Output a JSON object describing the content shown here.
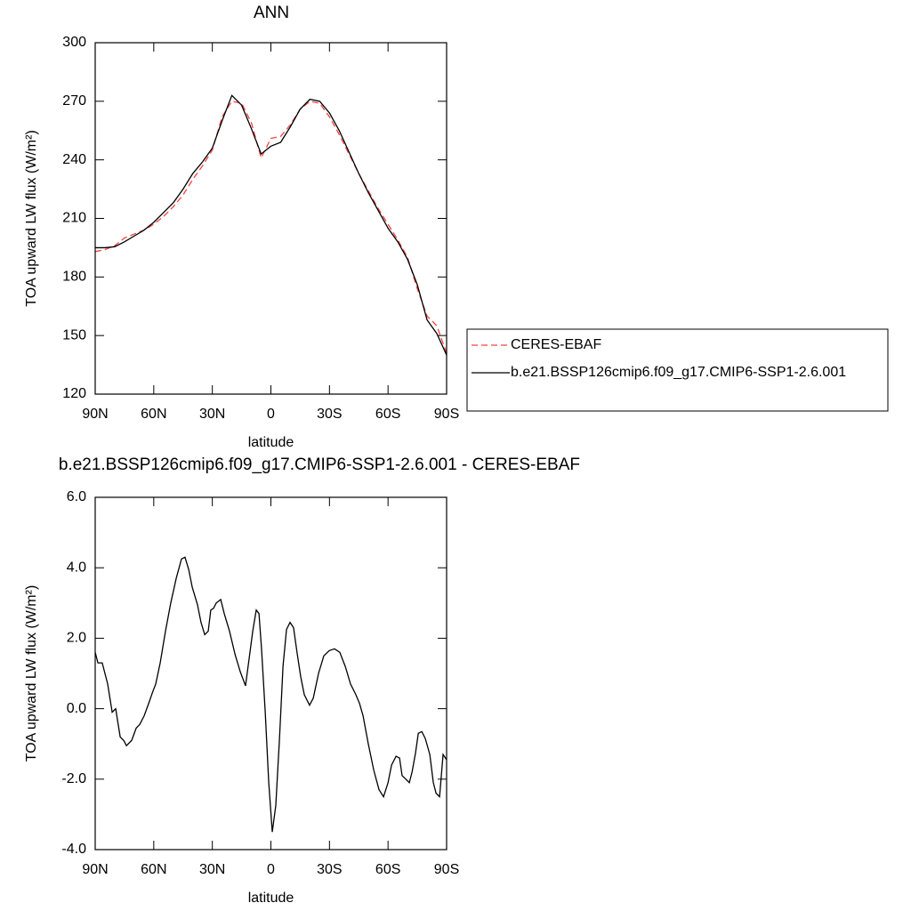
{
  "chart_data": [
    {
      "type": "line",
      "title": "ANN",
      "xlabel": "latitude",
      "ylabel": "TOA upward LW flux (W/m²)",
      "x": [
        90,
        85,
        80,
        75,
        70,
        65,
        60,
        55,
        50,
        45,
        40,
        35,
        30,
        25,
        20,
        15,
        10,
        5,
        0,
        -5,
        -10,
        -15,
        -20,
        -25,
        -30,
        -35,
        -40,
        -45,
        -50,
        -55,
        -60,
        -65,
        -70,
        -75,
        -80,
        -85,
        -90
      ],
      "series": [
        {
          "name": "CERES-EBAF",
          "color": "#ff4040",
          "style": "dashed",
          "values": [
            193,
            194,
            196,
            200,
            202,
            204,
            207,
            211,
            216,
            222,
            230,
            237,
            245,
            262,
            270,
            269,
            259,
            241,
            251,
            252,
            258,
            266,
            270,
            269,
            262,
            253,
            243,
            233,
            224,
            215,
            207,
            199,
            190,
            174,
            160,
            155,
            141
          ]
        },
        {
          "name": "b.e21.BSSP126cmip6.f09_g17.CMIP6-SSP1-2.6.001",
          "color": "#000000",
          "style": "solid",
          "values": [
            195,
            195,
            195.5,
            198,
            201,
            204,
            208,
            213,
            218,
            225,
            233,
            239,
            246,
            260,
            273,
            268,
            256,
            243,
            247,
            249,
            257,
            266,
            271,
            270,
            264,
            255,
            244,
            233,
            223,
            214,
            205,
            198,
            189,
            176,
            158,
            151,
            140
          ]
        }
      ],
      "xlim": [
        90,
        -90
      ],
      "xticks": [
        {
          "value": 90,
          "label": "90N"
        },
        {
          "value": 60,
          "label": "60N"
        },
        {
          "value": 30,
          "label": "30N"
        },
        0,
        {
          "value": -30,
          "label": "30S"
        },
        {
          "value": -60,
          "label": "60S"
        },
        {
          "value": -90,
          "label": "90S"
        }
      ],
      "ylim": [
        120,
        300
      ],
      "yticks": [
        120,
        150,
        180,
        210,
        240,
        270,
        300
      ],
      "legend": "right"
    },
    {
      "type": "line",
      "title": "b.e21.BSSP126cmip6.f09_g17.CMIP6-SSP1-2.6.001 - CERES-EBAF",
      "xlabel": "latitude",
      "ylabel": "TOA upward LW flux (W/m²)",
      "x": [
        90,
        88.6,
        86.4,
        83.6,
        81.3,
        79.5,
        77.2,
        75.4,
        74.0,
        71.3,
        69.0,
        67.2,
        64.9,
        62.6,
        60.4,
        59.0,
        56.7,
        54.0,
        51.3,
        48.5,
        45.8,
        44.0,
        42.1,
        40.3,
        37.6,
        35.8,
        33.9,
        32.1,
        30.8,
        29.4,
        28.0,
        25.7,
        23.9,
        21.2,
        18.4,
        15.7,
        13.0,
        11.2,
        9.3,
        7.5,
        6.1,
        4.8,
        2.9,
        1.1,
        -0.7,
        -2.5,
        -4.4,
        -6.2,
        -8.0,
        -9.8,
        -11.6,
        -13.5,
        -15.3,
        -17.1,
        -19.8,
        -21.7,
        -24.4,
        -27.1,
        -29.9,
        -32.6,
        -35.3,
        -38.1,
        -40.8,
        -43.5,
        -45.4,
        -47.2,
        -49.9,
        -52.7,
        -55.4,
        -57.7,
        -60.0,
        -61.8,
        -64.1,
        -65.9,
        -67.2,
        -69.1,
        -70.9,
        -72.3,
        -74.1,
        -75.5,
        -77.3,
        -79.1,
        -81.4,
        -83.2,
        -84.6,
        -86.4,
        -88.2,
        -90
      ],
      "values": [
        1.6,
        1.3,
        1.3,
        0.7,
        -0.1,
        0.0,
        -0.8,
        -0.9,
        -1.05,
        -0.9,
        -0.55,
        -0.45,
        -0.2,
        0.15,
        0.5,
        0.7,
        1.3,
        2.2,
        3.0,
        3.7,
        4.25,
        4.3,
        3.95,
        3.45,
        2.95,
        2.45,
        2.1,
        2.2,
        2.8,
        2.85,
        3.0,
        3.1,
        2.7,
        2.2,
        1.55,
        1.05,
        0.65,
        1.4,
        2.2,
        2.8,
        2.7,
        1.7,
        -0.1,
        -2.1,
        -3.5,
        -2.75,
        -0.85,
        1.2,
        2.25,
        2.45,
        2.3,
        1.55,
        0.9,
        0.4,
        0.1,
        0.3,
        1.0,
        1.5,
        1.65,
        1.7,
        1.6,
        1.2,
        0.7,
        0.4,
        0.15,
        -0.2,
        -1.0,
        -1.75,
        -2.3,
        -2.5,
        -2.1,
        -1.6,
        -1.35,
        -1.4,
        -1.9,
        -2.0,
        -2.1,
        -1.8,
        -1.25,
        -0.7,
        -0.65,
        -0.85,
        -1.3,
        -2.1,
        -2.4,
        -2.5,
        -1.3,
        -1.45
      ],
      "color": "#000000",
      "xlim": [
        90,
        -90
      ],
      "xticks": [
        {
          "value": 90,
          "label": "90N"
        },
        {
          "value": 60,
          "label": "60N"
        },
        {
          "value": 30,
          "label": "30N"
        },
        0,
        {
          "value": -30,
          "label": "30S"
        },
        {
          "value": -60,
          "label": "60S"
        },
        {
          "value": -90,
          "label": "90S"
        }
      ],
      "ylim": [
        -4,
        6
      ],
      "yticks": [
        {
          "value": -4,
          "label": "-4.0"
        },
        {
          "value": -2,
          "label": "-2.0"
        },
        {
          "value": 0,
          "label": "0.0"
        },
        {
          "value": 2,
          "label": "2.0"
        },
        {
          "value": 4,
          "label": "4.0"
        },
        {
          "value": 6,
          "label": "6.0"
        }
      ]
    }
  ]
}
